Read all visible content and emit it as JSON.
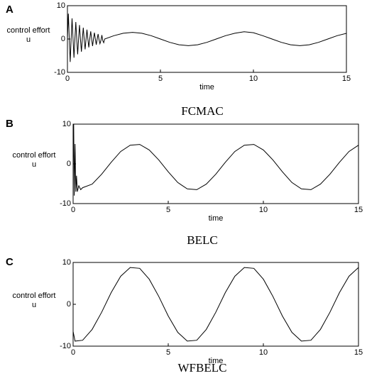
{
  "chart_data": [
    {
      "type": "line",
      "panel_label": "A",
      "ylabel": [
        "control effort",
        "u"
      ],
      "xlabel": "time",
      "caption": "FCMAC",
      "xlim": [
        0,
        15
      ],
      "ylim": [
        -10,
        10
      ],
      "xticks": [
        0,
        5,
        10,
        15
      ],
      "yticks": [
        -10,
        0,
        10
      ],
      "series": [
        {
          "color": "#000000",
          "x": [
            0,
            0.05,
            0.1,
            0.15,
            0.2,
            0.25,
            0.3,
            0.35,
            0.4,
            0.45,
            0.5,
            0.55,
            0.6,
            0.65,
            0.7,
            0.75,
            0.8,
            0.85,
            0.9,
            0.95,
            1.0,
            1.05,
            1.1,
            1.15,
            1.2,
            1.25,
            1.3,
            1.35,
            1.4,
            1.45,
            1.5,
            1.55,
            1.6,
            1.65,
            1.7,
            1.75,
            1.8,
            1.85,
            1.9,
            1.95,
            2.0,
            2.5,
            3,
            3.5,
            4,
            4.5,
            5,
            5.5,
            6,
            6.5,
            7,
            7.5,
            8,
            8.5,
            9,
            9.5,
            10,
            10.5,
            11,
            11.5,
            12,
            12.5,
            13,
            13.5,
            14,
            14.5,
            15
          ],
          "values": [
            0,
            7.6,
            0,
            -6.9,
            0,
            6.2,
            0,
            -5.6,
            0,
            5.1,
            0,
            -4.6,
            0,
            4.2,
            0,
            -3.8,
            0,
            3.4,
            0,
            -3.1,
            0,
            2.8,
            0,
            -2.5,
            0,
            2.3,
            0,
            -2.1,
            0,
            1.9,
            0,
            -1.7,
            0,
            1.5,
            -0.2,
            -1.4,
            -0.4,
            1.2,
            -0.5,
            -1.1,
            0,
            1.0,
            1.73,
            2,
            1.73,
            1.0,
            0,
            -1,
            -1.73,
            -2,
            -1.73,
            -1,
            0,
            1,
            1.73,
            2.2,
            1.9,
            1.0,
            0,
            -1,
            -1.73,
            -2,
            -1.73,
            -1,
            0,
            1,
            1.7
          ]
        }
      ]
    },
    {
      "type": "line",
      "panel_label": "B",
      "ylabel": [
        "control effort",
        "u"
      ],
      "xlabel": "time",
      "caption": "BELC",
      "xlim": [
        0,
        15
      ],
      "ylim": [
        -10,
        10
      ],
      "xticks": [
        0,
        5,
        10,
        15
      ],
      "yticks": [
        -10,
        0,
        10
      ],
      "series": [
        {
          "color": "#000000",
          "x": [
            0,
            0.03,
            0.06,
            0.1,
            0.14,
            0.18,
            0.22,
            0.3,
            0.4,
            0.5,
            1.0,
            1.5,
            2.0,
            2.5,
            3,
            3.5,
            4,
            4.5,
            5,
            5.5,
            6,
            6.5,
            7,
            7.5,
            8,
            8.5,
            9,
            9.5,
            10,
            10.5,
            11,
            11.5,
            12,
            12.5,
            13,
            13.5,
            14,
            14.5,
            15
          ],
          "values": [
            0,
            10,
            -8,
            5,
            -7,
            -3,
            -7,
            -5.5,
            -6.5,
            -6,
            -5.1,
            -2.6,
            0.4,
            3.1,
            4.7,
            4.9,
            3.5,
            1.0,
            -2.0,
            -4.7,
            -6.3,
            -6.5,
            -5.1,
            -2.6,
            0.4,
            3.1,
            4.7,
            4.9,
            3.5,
            1.0,
            -2.0,
            -4.7,
            -6.3,
            -6.5,
            -5.1,
            -2.6,
            0.4,
            3.1,
            4.7
          ]
        }
      ]
    },
    {
      "type": "line",
      "panel_label": "C",
      "ylabel": [
        "control effort",
        "u"
      ],
      "xlabel": "time",
      "caption": "WFBELC",
      "xlim": [
        0,
        15
      ],
      "ylim": [
        -10,
        10
      ],
      "xticks": [
        0,
        5,
        10,
        15
      ],
      "yticks": [
        -10,
        0,
        10
      ],
      "series": [
        {
          "color": "#000000",
          "x": [
            0,
            0.1,
            0.5,
            1.0,
            1.5,
            2.0,
            2.5,
            3,
            3.5,
            4,
            4.5,
            5,
            5.5,
            6,
            6.5,
            7,
            7.5,
            8,
            8.5,
            9,
            9.5,
            10,
            10.5,
            11,
            11.5,
            12,
            12.5,
            13,
            13.5,
            14,
            14.5,
            15
          ],
          "values": [
            -6.5,
            -8.8,
            -8.6,
            -6.0,
            -1.9,
            2.8,
            6.7,
            8.8,
            8.6,
            6.0,
            1.9,
            -2.8,
            -6.7,
            -8.8,
            -8.6,
            -6.0,
            -1.9,
            2.8,
            6.7,
            8.8,
            8.6,
            6.0,
            1.9,
            -2.8,
            -6.7,
            -8.8,
            -8.6,
            -6.0,
            -1.9,
            2.8,
            6.7,
            8.8
          ]
        }
      ]
    }
  ]
}
